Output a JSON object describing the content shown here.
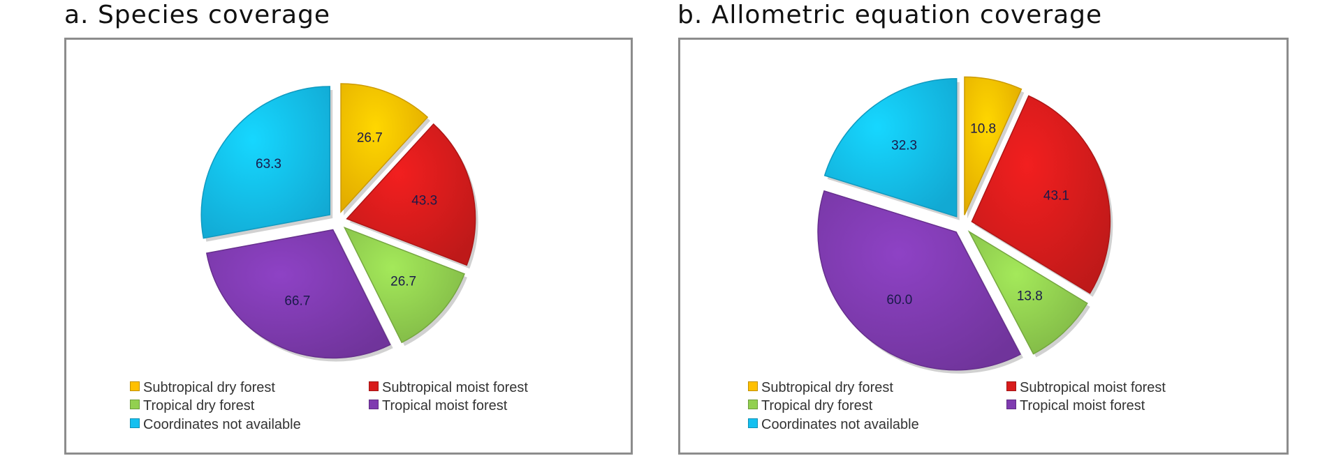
{
  "categories": [
    "Subtropical dry forest",
    "Subtropical moist forest",
    "Tropical dry forest",
    "Tropical moist forest",
    "Coordinates not available"
  ],
  "colors": {
    "Subtropical dry forest": "#ffc000",
    "Subtropical moist forest": "#d81c1c",
    "Tropical dry forest": "#92d050",
    "Tropical moist forest": "#7f3bb0",
    "Coordinates not available": "#14c0f0"
  },
  "chart_data": [
    {
      "type": "pie",
      "title": "a. Species coverage",
      "slices": [
        {
          "label": "Subtropical dry forest",
          "value": 26.7
        },
        {
          "label": "Subtropical moist forest",
          "value": 43.3
        },
        {
          "label": "Tropical dry forest",
          "value": 26.7
        },
        {
          "label": "Tropical moist forest",
          "value": 66.7
        },
        {
          "label": "Coordinates not available",
          "value": 63.3
        }
      ],
      "legend": "bottom",
      "exploded": true
    },
    {
      "type": "pie",
      "title": "b. Allometric equation coverage",
      "slices": [
        {
          "label": "Subtropical dry forest",
          "value": 10.8
        },
        {
          "label": "Subtropical moist forest",
          "value": 43.1
        },
        {
          "label": "Tropical dry forest",
          "value": 13.8
        },
        {
          "label": "Tropical moist forest",
          "value": 60.0
        },
        {
          "label": "Coordinates not available",
          "value": 32.3
        }
      ],
      "legend": "bottom",
      "exploded": true
    }
  ]
}
